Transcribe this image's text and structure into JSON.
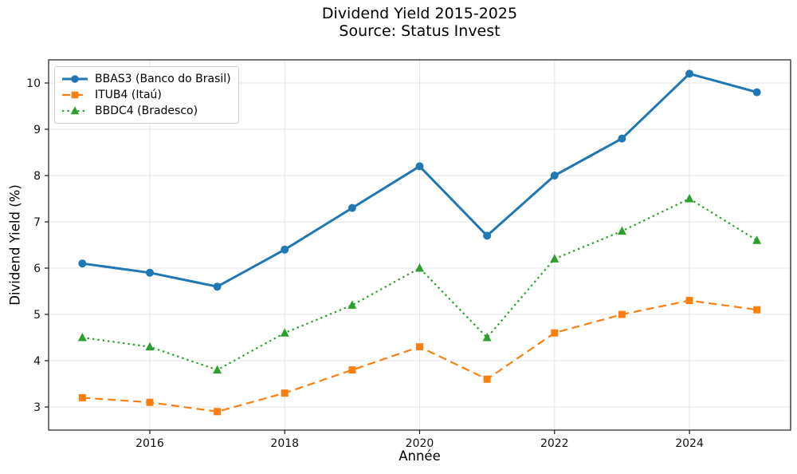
{
  "chart_data": {
    "type": "line",
    "title": "Dividend Yield 2015-2025",
    "subtitle": "Source: Status Invest",
    "xlabel": "Année",
    "ylabel": "Dividend Yield (%)",
    "x": [
      2015,
      2016,
      2017,
      2018,
      2019,
      2020,
      2021,
      2022,
      2023,
      2024,
      2025
    ],
    "series": [
      {
        "name": "BBAS3 (Banco do Brasil)",
        "color": "#1f77b4",
        "line_style": "solid",
        "marker": "circle",
        "values": [
          6.1,
          5.9,
          5.6,
          6.4,
          7.3,
          8.2,
          6.7,
          8.0,
          8.8,
          10.2,
          9.8
        ]
      },
      {
        "name": "ITUB4 (Itaú)",
        "color": "#ff7f0e",
        "line_style": "dashed",
        "marker": "square",
        "values": [
          3.2,
          3.1,
          2.9,
          3.3,
          3.8,
          4.3,
          3.6,
          4.6,
          5.0,
          5.3,
          5.1
        ]
      },
      {
        "name": "BBDC4 (Bradesco)",
        "color": "#2ca02c",
        "line_style": "dotted",
        "marker": "triangle",
        "values": [
          4.5,
          4.3,
          3.8,
          4.6,
          5.2,
          6.0,
          4.5,
          6.2,
          6.8,
          7.5,
          6.6
        ]
      }
    ],
    "x_ticks": [
      2016,
      2018,
      2020,
      2022,
      2024
    ],
    "y_ticks": [
      3,
      4,
      5,
      6,
      7,
      8,
      9,
      10
    ],
    "xlim": [
      2014.5,
      2025.5
    ],
    "ylim": [
      2.5,
      10.5
    ],
    "grid": true,
    "legend_position": "upper left",
    "grid_color": "#e4e4e4",
    "axis_color": "#1a1a1a",
    "text_color": "#111111"
  }
}
